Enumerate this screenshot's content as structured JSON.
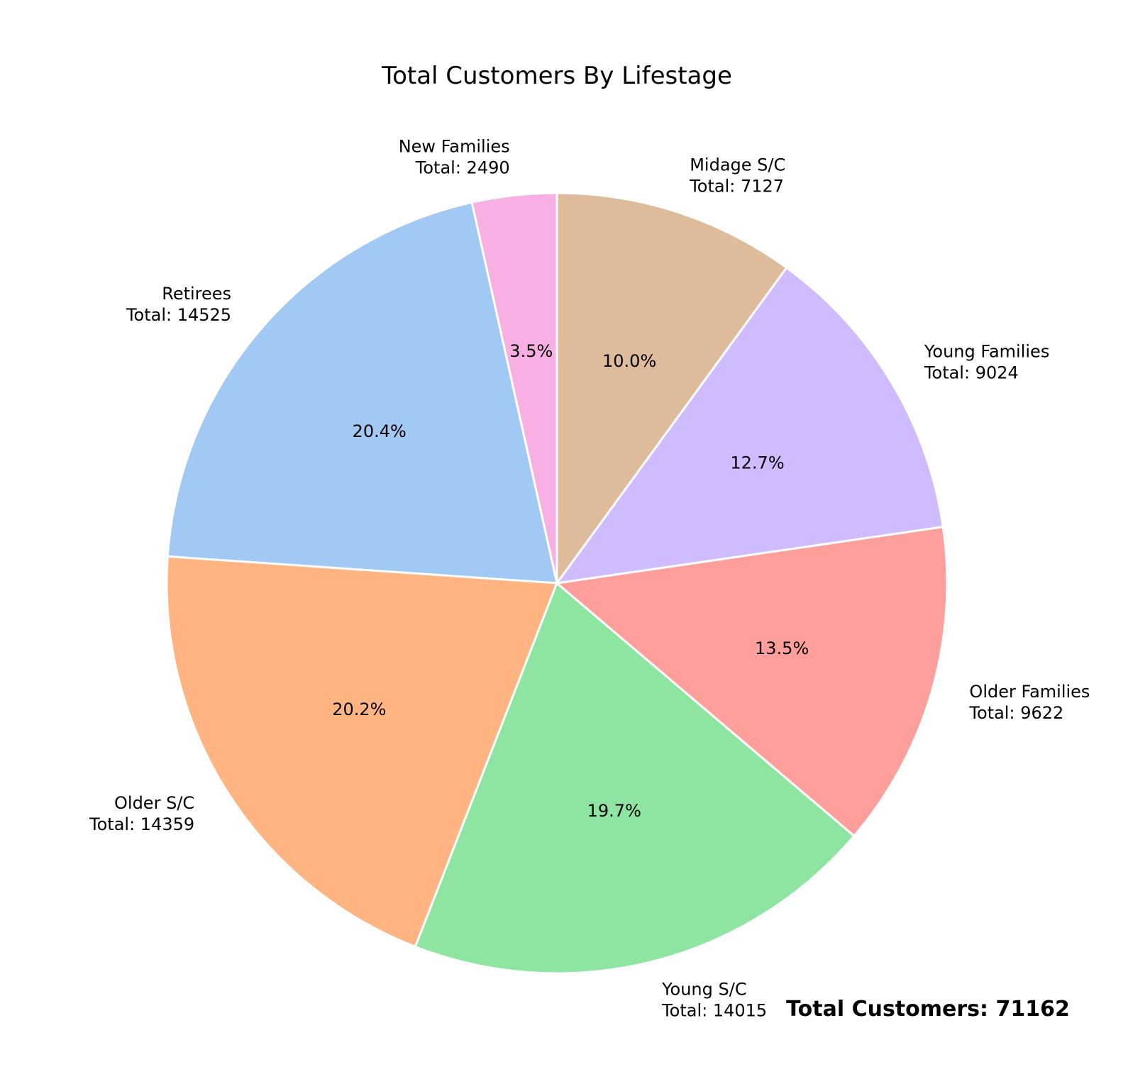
{
  "chart_data": {
    "type": "pie",
    "title": "Total Customers By Lifestage",
    "start_angle_deg": 90,
    "direction": "counterclockwise",
    "slices": [
      {
        "name": "New Families",
        "label": "New Families",
        "total_label": "Total: 2490",
        "value": 2490,
        "pct_label": "3.5%",
        "color": "#f8b0e4"
      },
      {
        "name": "Retirees",
        "label": "Retirees",
        "total_label": "Total: 14525",
        "value": 14525,
        "pct_label": "20.4%",
        "color": "#a1c9f4"
      },
      {
        "name": "Older S/C",
        "label": "Older S/C",
        "total_label": "Total: 14359",
        "value": 14359,
        "pct_label": "20.2%",
        "color": "#ffb482"
      },
      {
        "name": "Young S/C",
        "label": "Young S/C",
        "total_label": "Total: 14015",
        "value": 14015,
        "pct_label": "19.7%",
        "color": "#8de5a1"
      },
      {
        "name": "Older Families",
        "label": "Older Families",
        "total_label": "Total: 9622",
        "value": 9622,
        "pct_label": "13.5%",
        "color": "#ff9f9b"
      },
      {
        "name": "Young Families",
        "label": "Young Families",
        "total_label": "Total: 9024",
        "value": 9024,
        "pct_label": "12.7%",
        "color": "#d0bbff"
      },
      {
        "name": "Midage S/C",
        "label": "Midage S/C",
        "total_label": "Total: 7127",
        "value": 7127,
        "pct_label": "10.0%",
        "color": "#debb9b"
      }
    ],
    "total_annotation": "Total Customers: 71162"
  }
}
